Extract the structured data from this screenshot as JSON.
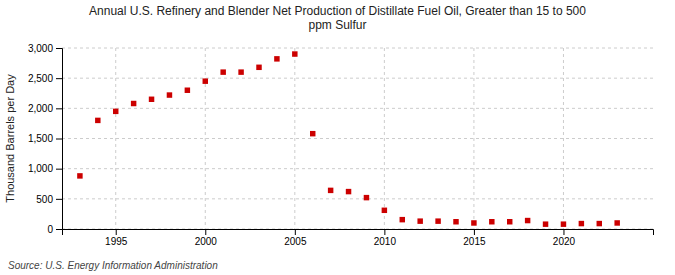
{
  "chart_data": {
    "type": "scatter",
    "title": "Annual U.S. Refinery and Blender Net Production of Distillate Fuel Oil, Greater than 15 to 500\nppm Sulfur",
    "ylabel": "Thousand Barrels per Day",
    "source": "Source: U.S. Energy Information Administration",
    "x": [
      1993,
      1994,
      1995,
      1996,
      1997,
      1998,
      1999,
      2000,
      2001,
      2002,
      2003,
      2004,
      2005,
      2006,
      2007,
      2008,
      2009,
      2010,
      2011,
      2012,
      2013,
      2014,
      2015,
      2016,
      2017,
      2018,
      2019,
      2020,
      2021,
      2022,
      2023
    ],
    "values": [
      880,
      1800,
      1950,
      2080,
      2150,
      2220,
      2300,
      2450,
      2600,
      2600,
      2680,
      2820,
      2900,
      1580,
      640,
      620,
      520,
      310,
      155,
      130,
      130,
      120,
      100,
      120,
      120,
      140,
      80,
      80,
      90,
      90,
      100
    ],
    "color": "#cc0000",
    "marker": "square",
    "xlim": [
      1992,
      2025
    ],
    "xticks": [
      1995,
      2000,
      2005,
      2010,
      2015,
      2020
    ],
    "ylim": [
      0,
      3000
    ],
    "yticks": [
      0,
      500,
      {
        "value": 1000,
        "label": "1,000"
      },
      {
        "value": 1500,
        "label": "1,500"
      },
      {
        "value": 2000,
        "label": "2,000"
      },
      {
        "value": 2500,
        "label": "2,500"
      },
      {
        "value": 3000,
        "label": "3,000"
      }
    ],
    "grid": true
  }
}
